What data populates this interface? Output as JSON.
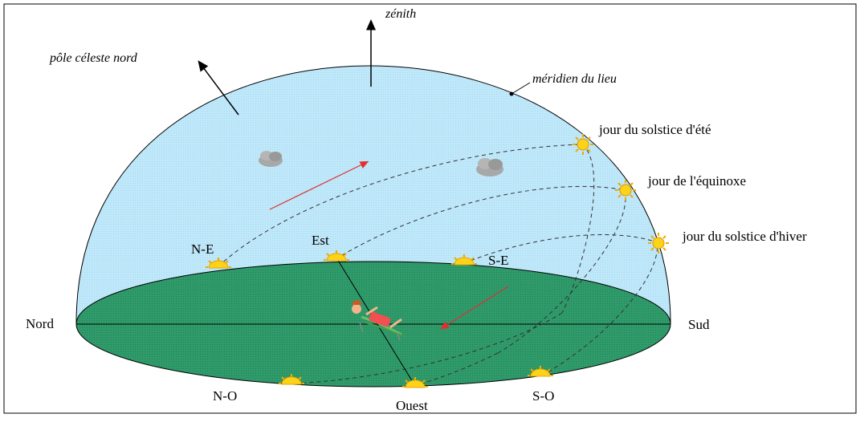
{
  "labels": {
    "zenith": "zénith",
    "north_pole": "pôle céleste nord",
    "meridian": "méridien du lieu",
    "summer_solstice": "jour du solstice d'été",
    "equinox": "jour de l'équinoxe",
    "winter_solstice": "jour du solstice d'hiver",
    "north": "Nord",
    "south": "Sud",
    "east": "Est",
    "west": "Ouest",
    "ne": "N-E",
    "nw": "N-O",
    "se": "S-E",
    "sw": "S-O"
  },
  "colors": {
    "sky": "#bfe8fa",
    "ground": "#2e9a6a",
    "sun": "#ffd21a",
    "arrow": "#e03030",
    "cloud": "#a8a8a8"
  },
  "icons": {
    "sun": "sun-icon",
    "cloud": "cloud-icon",
    "observer": "sunbather-icon"
  }
}
